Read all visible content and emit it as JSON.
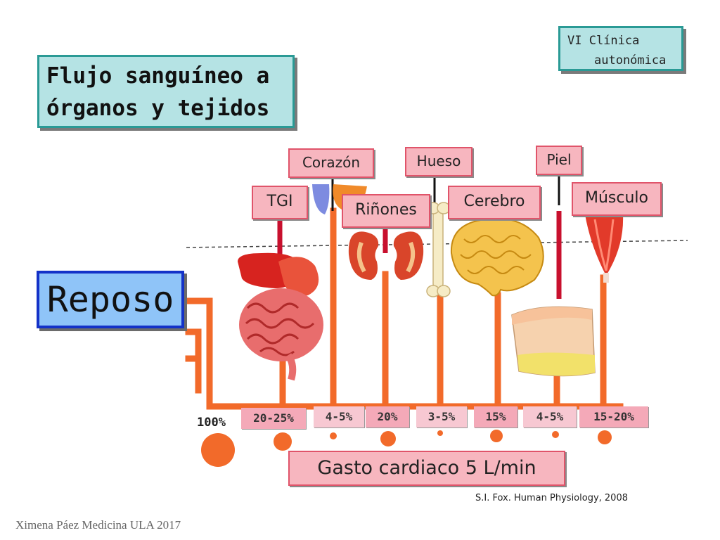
{
  "title": {
    "line1": "Flujo sanguíneo a",
    "line2": "órganos y tejidos"
  },
  "section": {
    "line1": "VI Clínica",
    "line2": "autonómica"
  },
  "state_label": "Reposo",
  "organs": {
    "tgi": "TGI",
    "corazon": "Corazón",
    "rinones": "Riñones",
    "hueso": "Hueso",
    "cerebro": "Cerebro",
    "piel": "Piel",
    "musculo": "Músculo"
  },
  "percentages": {
    "total": "100%",
    "tgi": "20-25%",
    "corazon": "4-5%",
    "rinones": "20%",
    "hueso": "3-5%",
    "cerebro": "15%",
    "piel": "4-5%",
    "musculo": "15-20%"
  },
  "cardiac_output": "Gasto cardiaco 5 L/min",
  "citation": "S.I. Fox. Human Physiology, 2008",
  "author": "Ximena Páez Medicina ULA 2017",
  "colors": {
    "vessel": "#f26a2a",
    "organ_label_bg": "#f7b6bf",
    "organ_label_border": "#e0546a",
    "title_bg": "#b5e3e4",
    "reposo_bg": "#8fc4f8"
  }
}
